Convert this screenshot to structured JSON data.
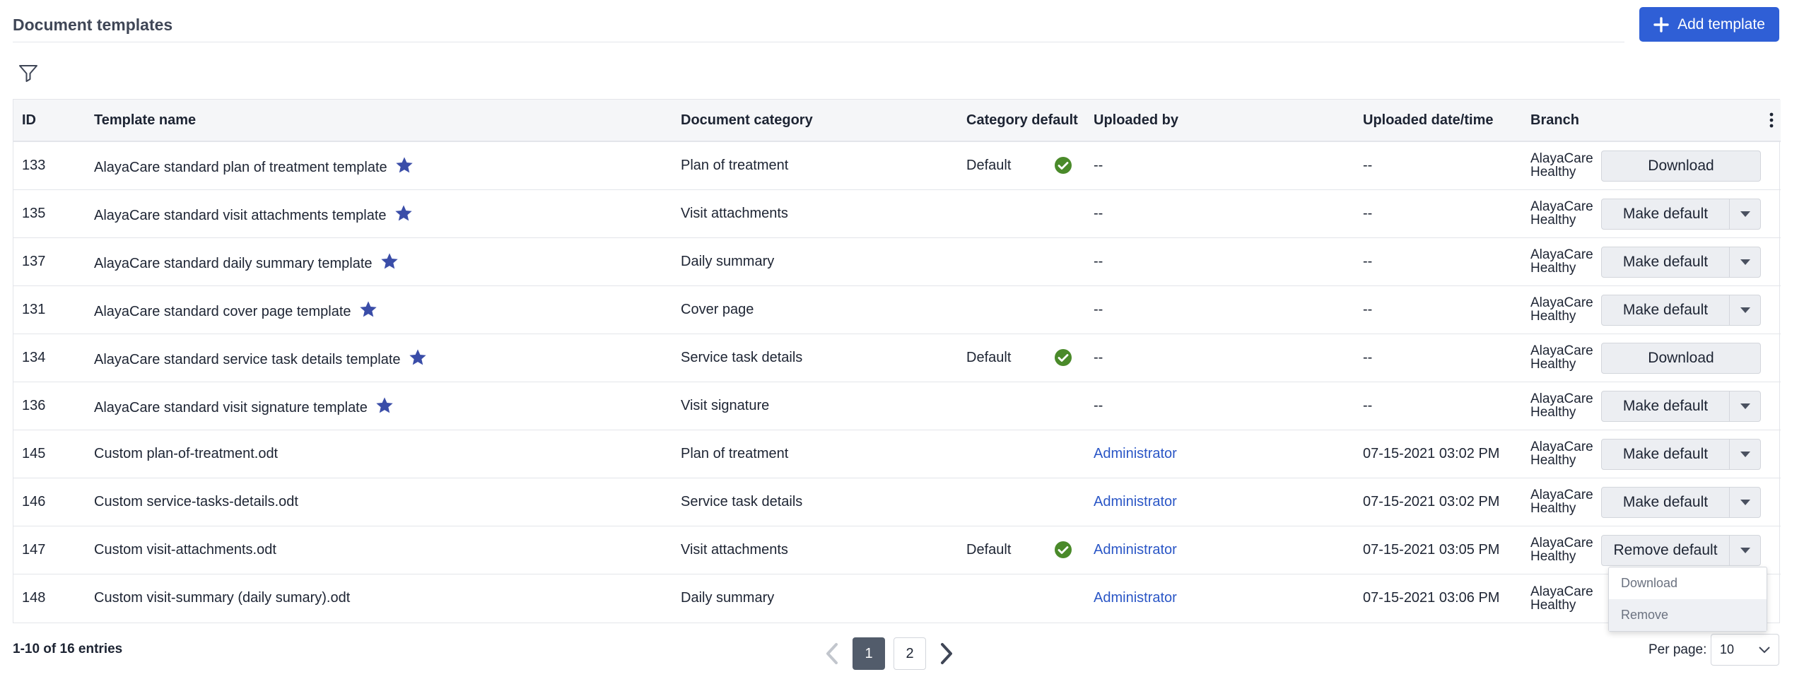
{
  "header": {
    "title": "Document templates",
    "add_button": "Add template"
  },
  "colors": {
    "accent": "#2f5fd6",
    "star": "#3a4da8",
    "check": "#4a8a2a",
    "link": "#2a56c6"
  },
  "table": {
    "columns": [
      "ID",
      "Template name",
      "Document category",
      "Category default",
      "Uploaded by",
      "Uploaded date/time",
      "Branch"
    ],
    "rows": [
      {
        "id": "133",
        "name": "AlayaCare standard plan of treatment template",
        "star": true,
        "category": "Plan of treatment",
        "default": "Default",
        "uploaded_by": "--",
        "date": "--",
        "branch1": "AlayaCare",
        "branch2": "Healthy",
        "action": "Download",
        "has_menu": false
      },
      {
        "id": "135",
        "name": "AlayaCare standard visit attachments template",
        "star": true,
        "category": "Visit attachments",
        "default": "",
        "uploaded_by": "--",
        "date": "--",
        "branch1": "AlayaCare",
        "branch2": "Healthy",
        "action": "Make default",
        "has_menu": true
      },
      {
        "id": "137",
        "name": "AlayaCare standard daily summary template",
        "star": true,
        "category": "Daily summary",
        "default": "",
        "uploaded_by": "--",
        "date": "--",
        "branch1": "AlayaCare",
        "branch2": "Healthy",
        "action": "Make default",
        "has_menu": true
      },
      {
        "id": "131",
        "name": "AlayaCare standard cover page template",
        "star": true,
        "category": "Cover page",
        "default": "",
        "uploaded_by": "--",
        "date": "--",
        "branch1": "AlayaCare",
        "branch2": "Healthy",
        "action": "Make default",
        "has_menu": true
      },
      {
        "id": "134",
        "name": "AlayaCare standard service task details template",
        "star": true,
        "category": "Service task details",
        "default": "Default",
        "uploaded_by": "--",
        "date": "--",
        "branch1": "AlayaCare",
        "branch2": "Healthy",
        "action": "Download",
        "has_menu": false
      },
      {
        "id": "136",
        "name": "AlayaCare standard visit signature template",
        "star": true,
        "category": "Visit signature",
        "default": "",
        "uploaded_by": "--",
        "date": "--",
        "branch1": "AlayaCare",
        "branch2": "Healthy",
        "action": "Make default",
        "has_menu": true
      },
      {
        "id": "145",
        "name": "Custom plan-of-treatment.odt",
        "star": false,
        "category": "Plan of treatment",
        "default": "",
        "uploaded_by": "Administrator",
        "date": "07-15-2021 03:02 PM",
        "branch1": "AlayaCare",
        "branch2": "Healthy",
        "action": "Make default",
        "has_menu": true
      },
      {
        "id": "146",
        "name": "Custom service-tasks-details.odt",
        "star": false,
        "category": "Service task details",
        "default": "",
        "uploaded_by": "Administrator",
        "date": "07-15-2021 03:02 PM",
        "branch1": "AlayaCare",
        "branch2": "Healthy",
        "action": "Make default",
        "has_menu": true
      },
      {
        "id": "147",
        "name": "Custom visit-attachments.odt",
        "star": false,
        "category": "Visit attachments",
        "default": "Default",
        "uploaded_by": "Administrator",
        "date": "07-15-2021 03:05 PM",
        "branch1": "AlayaCare",
        "branch2": "Healthy",
        "action": "Remove default",
        "has_menu": true
      },
      {
        "id": "148",
        "name": "Custom visit-summary (daily sumary).odt",
        "star": false,
        "category": "Daily summary",
        "default": "",
        "uploaded_by": "Administrator",
        "date": "07-15-2021 03:06 PM",
        "branch1": "AlayaCare",
        "branch2": "Healthy",
        "action": "",
        "has_menu": false
      }
    ]
  },
  "dropdown": {
    "items": [
      "Download",
      "Remove"
    ],
    "highlighted": "Remove"
  },
  "footer": {
    "entries": "1-10 of 16 entries",
    "pages": [
      "1",
      "2"
    ],
    "current_page": "1",
    "per_page_label": "Per page:",
    "per_page_value": "10"
  }
}
